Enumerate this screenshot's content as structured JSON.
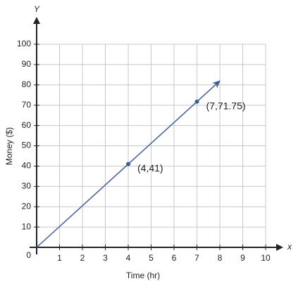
{
  "chart_data": {
    "type": "line",
    "x_label": "Time (hr)",
    "y_label": "Money ($)",
    "x_axis_name": "x",
    "y_axis_name": "Y",
    "origin_tick": 0,
    "xlim": [
      0,
      10
    ],
    "ylim": [
      0,
      100
    ],
    "xticks": [
      1,
      2,
      3,
      4,
      5,
      6,
      7,
      8,
      9,
      10
    ],
    "yticks": [
      10,
      20,
      30,
      40,
      50,
      60,
      70,
      80,
      90,
      100
    ],
    "grid": true,
    "series": [
      {
        "color": "#3e5c9a",
        "x": [
          0,
          8
        ],
        "values": [
          0,
          82
        ]
      },
      {
        "color": "#3e5c9a",
        "x": [
          4,
          7
        ],
        "values": [
          41,
          71.75
        ],
        "value_labels": [
          "(4,41)",
          "(7,71.75)"
        ]
      }
    ]
  }
}
